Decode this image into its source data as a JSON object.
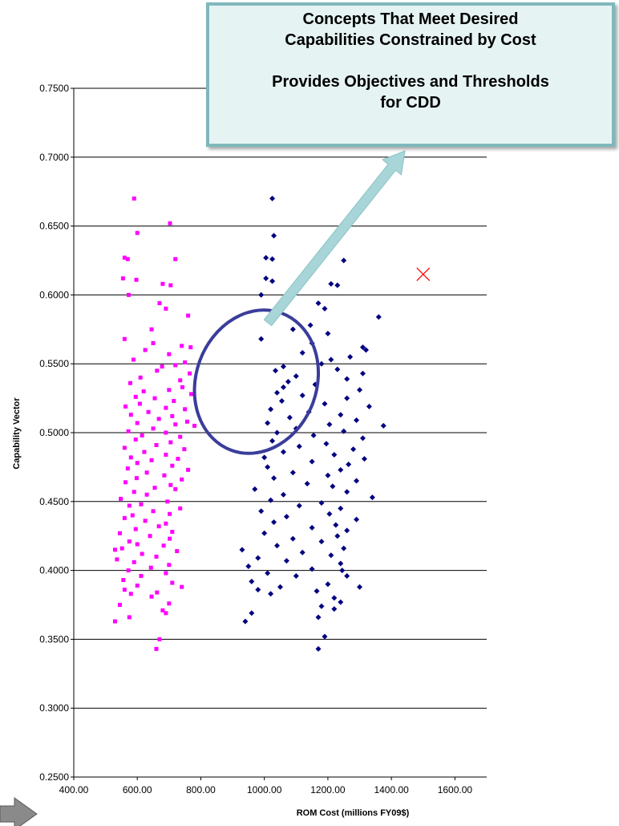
{
  "chart_data": {
    "type": "scatter",
    "xlabel": "ROM Cost (millions FY09$)",
    "ylabel": "Capability Vector",
    "xlim": [
      400,
      1700
    ],
    "ylim": [
      0.25,
      0.75
    ],
    "x_ticks": [
      "400.00",
      "600.00",
      "800.00",
      "1000.00",
      "1200.00",
      "1400.00",
      "1600.00"
    ],
    "y_ticks": [
      "0.2500",
      "0.3000",
      "0.3500",
      "0.4000",
      "0.4500",
      "0.5000",
      "0.5500",
      "0.6000",
      "0.6500",
      "0.7000",
      "0.7500"
    ],
    "grid": "horizontal",
    "series": [
      {
        "marker": "square",
        "color": "#ff00ff",
        "points": [
          [
            590,
            0.67
          ],
          [
            703,
            0.652
          ],
          [
            600,
            0.645
          ],
          [
            560,
            0.627
          ],
          [
            570,
            0.626
          ],
          [
            720,
            0.626
          ],
          [
            555,
            0.612
          ],
          [
            597,
            0.611
          ],
          [
            680,
            0.608
          ],
          [
            705,
            0.607
          ],
          [
            573,
            0.6
          ],
          [
            670,
            0.594
          ],
          [
            690,
            0.59
          ],
          [
            760,
            0.585
          ],
          [
            645,
            0.575
          ],
          [
            560,
            0.568
          ],
          [
            650,
            0.565
          ],
          [
            740,
            0.563
          ],
          [
            768,
            0.562
          ],
          [
            625,
            0.56
          ],
          [
            700,
            0.557
          ],
          [
            588,
            0.553
          ],
          [
            750,
            0.551
          ],
          [
            720,
            0.549
          ],
          [
            678,
            0.548
          ],
          [
            662,
            0.545
          ],
          [
            765,
            0.543
          ],
          [
            610,
            0.54
          ],
          [
            735,
            0.538
          ],
          [
            578,
            0.536
          ],
          [
            742,
            0.533
          ],
          [
            700,
            0.531
          ],
          [
            620,
            0.53
          ],
          [
            770,
            0.528
          ],
          [
            595,
            0.526
          ],
          [
            655,
            0.525
          ],
          [
            715,
            0.523
          ],
          [
            608,
            0.521
          ],
          [
            563,
            0.519
          ],
          [
            690,
            0.518
          ],
          [
            750,
            0.517
          ],
          [
            635,
            0.515
          ],
          [
            580,
            0.513
          ],
          [
            710,
            0.512
          ],
          [
            668,
            0.51
          ],
          [
            757,
            0.508
          ],
          [
            600,
            0.507
          ],
          [
            720,
            0.506
          ],
          [
            780,
            0.505
          ],
          [
            650,
            0.503
          ],
          [
            572,
            0.501
          ],
          [
            690,
            0.5
          ],
          [
            615,
            0.498
          ],
          [
            735,
            0.497
          ],
          [
            595,
            0.495
          ],
          [
            705,
            0.493
          ],
          [
            660,
            0.491
          ],
          [
            560,
            0.489
          ],
          [
            748,
            0.488
          ],
          [
            622,
            0.486
          ],
          [
            690,
            0.484
          ],
          [
            580,
            0.482
          ],
          [
            728,
            0.481
          ],
          [
            645,
            0.48
          ],
          [
            600,
            0.478
          ],
          [
            710,
            0.476
          ],
          [
            570,
            0.474
          ],
          [
            760,
            0.473
          ],
          [
            630,
            0.471
          ],
          [
            685,
            0.469
          ],
          [
            598,
            0.467
          ],
          [
            740,
            0.466
          ],
          [
            563,
            0.464
          ],
          [
            705,
            0.462
          ],
          [
            655,
            0.46
          ],
          [
            720,
            0.459
          ],
          [
            590,
            0.457
          ],
          [
            630,
            0.455
          ],
          [
            548,
            0.452
          ],
          [
            695,
            0.45
          ],
          [
            612,
            0.448
          ],
          [
            575,
            0.447
          ],
          [
            735,
            0.445
          ],
          [
            650,
            0.443
          ],
          [
            702,
            0.441
          ],
          [
            585,
            0.44
          ],
          [
            560,
            0.438
          ],
          [
            625,
            0.436
          ],
          [
            690,
            0.434
          ],
          [
            668,
            0.432
          ],
          [
            595,
            0.43
          ],
          [
            710,
            0.428
          ],
          [
            545,
            0.427
          ],
          [
            640,
            0.425
          ],
          [
            702,
            0.423
          ],
          [
            575,
            0.421
          ],
          [
            600,
            0.419
          ],
          [
            683,
            0.418
          ],
          [
            552,
            0.416
          ],
          [
            725,
            0.414
          ],
          [
            615,
            0.412
          ],
          [
            660,
            0.41
          ],
          [
            536,
            0.408
          ],
          [
            590,
            0.406
          ],
          [
            700,
            0.404
          ],
          [
            643,
            0.402
          ],
          [
            572,
            0.4
          ],
          [
            690,
            0.398
          ],
          [
            612,
            0.396
          ],
          [
            556,
            0.393
          ],
          [
            710,
            0.391
          ],
          [
            600,
            0.389
          ],
          [
            740,
            0.388
          ],
          [
            560,
            0.386
          ],
          [
            662,
            0.384
          ],
          [
            580,
            0.383
          ],
          [
            645,
            0.381
          ],
          [
            700,
            0.376
          ],
          [
            680,
            0.371
          ],
          [
            690,
            0.369
          ],
          [
            575,
            0.366
          ],
          [
            530,
            0.363
          ],
          [
            670,
            0.35
          ],
          [
            660,
            0.343
          ],
          [
            530,
            0.415
          ],
          [
            545,
            0.375
          ]
        ]
      },
      {
        "marker": "diamond",
        "color": "#000080",
        "points": [
          [
            1025,
            0.67
          ],
          [
            1245,
            0.651
          ],
          [
            1030,
            0.643
          ],
          [
            1005,
            0.627
          ],
          [
            1025,
            0.626
          ],
          [
            1250,
            0.625
          ],
          [
            1005,
            0.612
          ],
          [
            1025,
            0.61
          ],
          [
            1210,
            0.608
          ],
          [
            1230,
            0.607
          ],
          [
            990,
            0.6
          ],
          [
            1170,
            0.594
          ],
          [
            1190,
            0.59
          ],
          [
            1360,
            0.584
          ],
          [
            1145,
            0.578
          ],
          [
            1090,
            0.575
          ],
          [
            1200,
            0.572
          ],
          [
            990,
            0.568
          ],
          [
            1150,
            0.565
          ],
          [
            1310,
            0.562
          ],
          [
            1320,
            0.56
          ],
          [
            1120,
            0.558
          ],
          [
            1270,
            0.555
          ],
          [
            1210,
            0.553
          ],
          [
            1180,
            0.55
          ],
          [
            1060,
            0.548
          ],
          [
            1230,
            0.546
          ],
          [
            1035,
            0.545
          ],
          [
            1310,
            0.543
          ],
          [
            1100,
            0.541
          ],
          [
            1260,
            0.539
          ],
          [
            1075,
            0.537
          ],
          [
            1160,
            0.535
          ],
          [
            1060,
            0.533
          ],
          [
            1300,
            0.531
          ],
          [
            1040,
            0.529
          ],
          [
            1120,
            0.527
          ],
          [
            1260,
            0.525
          ],
          [
            1055,
            0.523
          ],
          [
            1190,
            0.521
          ],
          [
            1330,
            0.519
          ],
          [
            1020,
            0.517
          ],
          [
            1140,
            0.515
          ],
          [
            1240,
            0.513
          ],
          [
            1080,
            0.511
          ],
          [
            1290,
            0.509
          ],
          [
            1010,
            0.507
          ],
          [
            1205,
            0.506
          ],
          [
            1375,
            0.505
          ],
          [
            1100,
            0.503
          ],
          [
            1250,
            0.501
          ],
          [
            1040,
            0.5
          ],
          [
            1155,
            0.498
          ],
          [
            1310,
            0.496
          ],
          [
            1025,
            0.494
          ],
          [
            1195,
            0.492
          ],
          [
            1110,
            0.49
          ],
          [
            1280,
            0.488
          ],
          [
            1060,
            0.486
          ],
          [
            1220,
            0.484
          ],
          [
            1000,
            0.482
          ],
          [
            1315,
            0.481
          ],
          [
            1150,
            0.479
          ],
          [
            1265,
            0.477
          ],
          [
            1010,
            0.475
          ],
          [
            1240,
            0.473
          ],
          [
            1090,
            0.471
          ],
          [
            1200,
            0.469
          ],
          [
            1030,
            0.467
          ],
          [
            1290,
            0.465
          ],
          [
            1135,
            0.463
          ],
          [
            1215,
            0.461
          ],
          [
            970,
            0.459
          ],
          [
            1260,
            0.457
          ],
          [
            1060,
            0.455
          ],
          [
            1340,
            0.453
          ],
          [
            1020,
            0.451
          ],
          [
            1180,
            0.449
          ],
          [
            1110,
            0.447
          ],
          [
            1240,
            0.445
          ],
          [
            990,
            0.443
          ],
          [
            1205,
            0.441
          ],
          [
            1070,
            0.439
          ],
          [
            1290,
            0.437
          ],
          [
            1030,
            0.435
          ],
          [
            1225,
            0.433
          ],
          [
            1150,
            0.431
          ],
          [
            1260,
            0.429
          ],
          [
            1000,
            0.427
          ],
          [
            1230,
            0.425
          ],
          [
            1090,
            0.423
          ],
          [
            1180,
            0.421
          ],
          [
            1040,
            0.418
          ],
          [
            1250,
            0.416
          ],
          [
            930,
            0.415
          ],
          [
            1120,
            0.413
          ],
          [
            1210,
            0.411
          ],
          [
            980,
            0.409
          ],
          [
            1070,
            0.407
          ],
          [
            1240,
            0.405
          ],
          [
            950,
            0.403
          ],
          [
            1150,
            0.401
          ],
          [
            1245,
            0.4
          ],
          [
            1010,
            0.398
          ],
          [
            1260,
            0.396
          ],
          [
            1100,
            0.396
          ],
          [
            960,
            0.392
          ],
          [
            1200,
            0.39
          ],
          [
            1050,
            0.388
          ],
          [
            1300,
            0.388
          ],
          [
            980,
            0.386
          ],
          [
            1165,
            0.385
          ],
          [
            1020,
            0.383
          ],
          [
            1220,
            0.38
          ],
          [
            1240,
            0.377
          ],
          [
            1180,
            0.374
          ],
          [
            1220,
            0.372
          ],
          [
            960,
            0.369
          ],
          [
            1170,
            0.366
          ],
          [
            940,
            0.363
          ],
          [
            1190,
            0.352
          ],
          [
            1170,
            0.343
          ]
        ]
      },
      {
        "marker": "x",
        "color": "#ff0000",
        "points": [
          [
            1500,
            0.615
          ]
        ]
      }
    ],
    "annotations": [
      {
        "shape": "ellipse",
        "color": "#3a3d9a",
        "cx": 975,
        "cy": 0.537,
        "rx": 190,
        "ry": 0.053
      },
      {
        "shape": "callout",
        "text": [
          "Concepts That Meet Desired",
          "Capabilities Constrained by Cost",
          "",
          "Provides Objectives and Thresholds",
          "for CDD"
        ]
      }
    ]
  },
  "callout": {
    "line1": "Concepts That Meet Desired",
    "line2": "Capabilities Constrained by Cost",
    "line3": "Provides Objectives and Thresholds",
    "line4": "for CDD"
  }
}
